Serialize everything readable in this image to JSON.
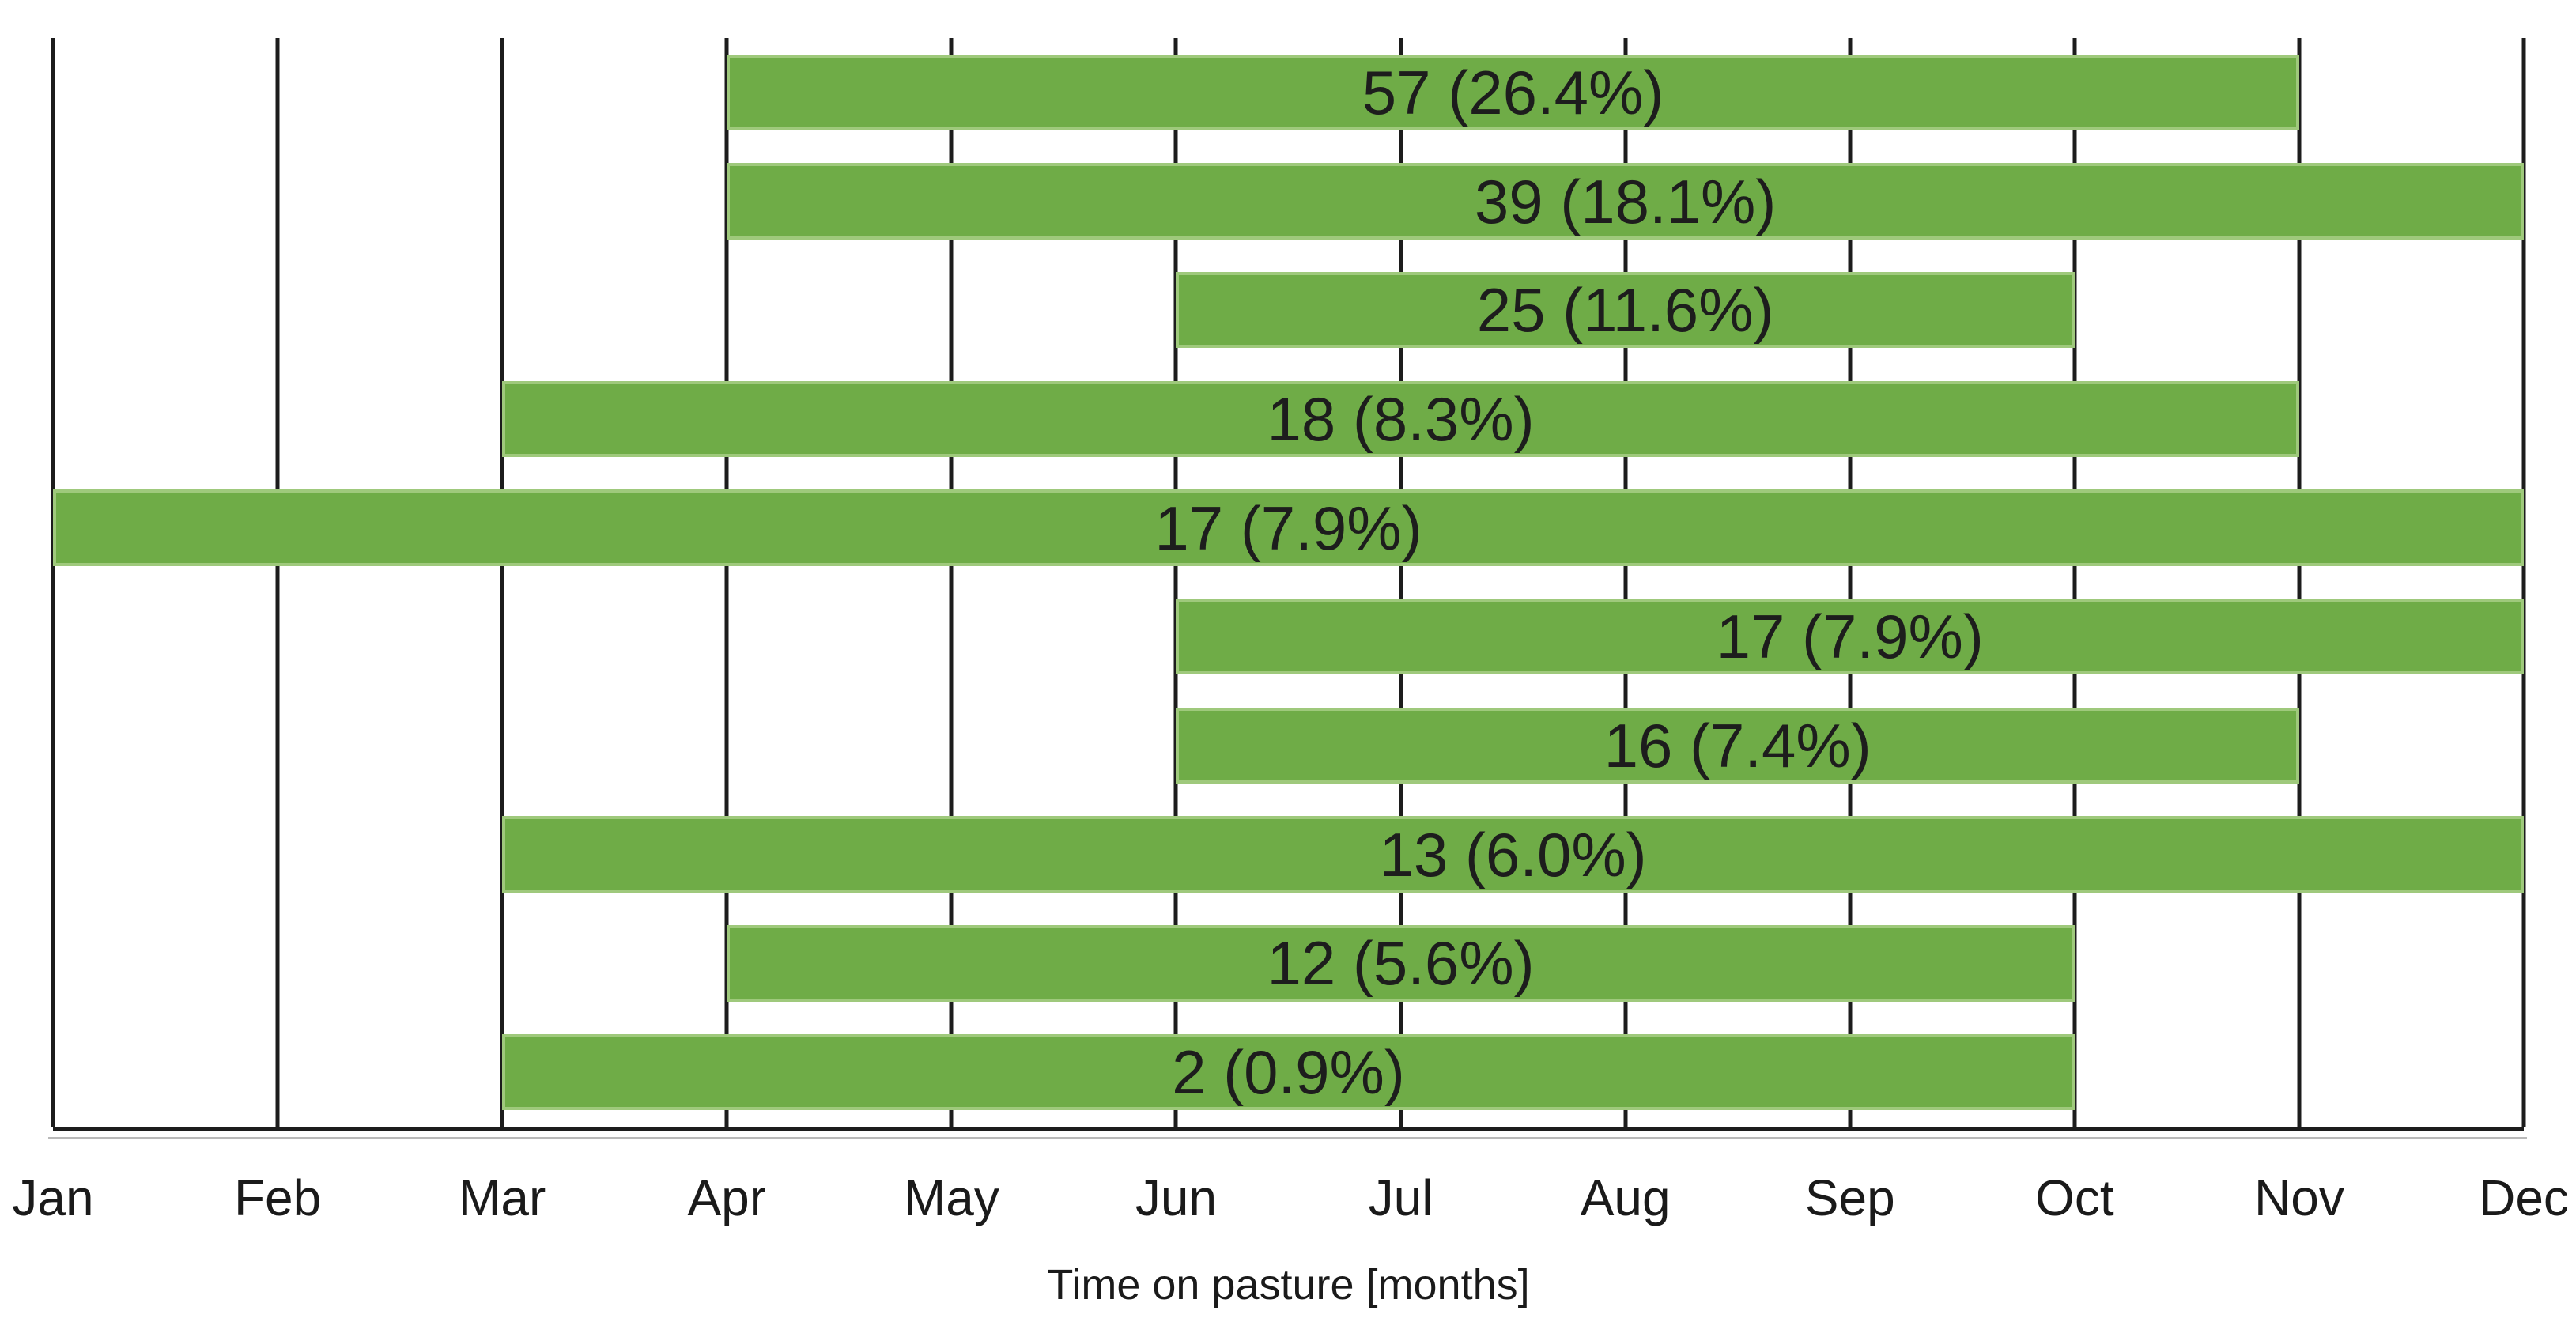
{
  "chart_data": {
    "type": "bar",
    "subtype": "horizontal-range-bars",
    "title": "",
    "xlabel": "Time on pasture [months]",
    "ylabel": "",
    "x_ticks": [
      "Jan",
      "Feb",
      "Mar",
      "Apr",
      "May",
      "Jun",
      "Jul",
      "Aug",
      "Sep",
      "Oct",
      "Nov",
      "Dec"
    ],
    "x_axis_months_span": 11,
    "grid": "vertical black gridlines at each month, bars drawn over gridlines",
    "legend": "none",
    "bar_color": "#6fac47",
    "bar_edge_color": "#9fc97c",
    "colors": {
      "grid_line": "#1c1c1c",
      "axis_line": "#1c1c1c",
      "text": "#1a1a1a",
      "background": "#ffffff"
    },
    "bars": [
      {
        "label": "57 (26.4%)",
        "count": 57,
        "percent": 26.4,
        "start_month": "Apr",
        "end_month": "Nov",
        "start_index": 3,
        "end_index": 10
      },
      {
        "label": "39 (18.1%)",
        "count": 39,
        "percent": 18.1,
        "start_month": "Apr",
        "end_month": "Dec",
        "start_index": 3,
        "end_index": 11
      },
      {
        "label": "25 (11.6%)",
        "count": 25,
        "percent": 11.6,
        "start_month": "Jun",
        "end_month": "Oct",
        "start_index": 5,
        "end_index": 9
      },
      {
        "label": "18 (8.3%)",
        "count": 18,
        "percent": 8.3,
        "start_month": "Mar",
        "end_month": "Nov",
        "start_index": 2,
        "end_index": 10
      },
      {
        "label": "17 (7.9%)",
        "count": 17,
        "percent": 7.9,
        "start_month": "Jan",
        "end_month": "Dec",
        "start_index": 0,
        "end_index": 11
      },
      {
        "label": "17 (7.9%)",
        "count": 17,
        "percent": 7.9,
        "start_month": "Jun",
        "end_month": "Dec",
        "start_index": 5,
        "end_index": 11
      },
      {
        "label": "16 (7.4%)",
        "count": 16,
        "percent": 7.4,
        "start_month": "Jun",
        "end_month": "Nov",
        "start_index": 5,
        "end_index": 10
      },
      {
        "label": "13 (6.0%)",
        "count": 13,
        "percent": 6.0,
        "start_month": "Mar",
        "end_month": "Dec",
        "start_index": 2,
        "end_index": 11
      },
      {
        "label": "12 (5.6%)",
        "count": 12,
        "percent": 5.6,
        "start_month": "Apr",
        "end_month": "Oct",
        "start_index": 3,
        "end_index": 9
      },
      {
        "label": "2 (0.9%)",
        "count": 2,
        "percent": 0.9,
        "start_month": "Mar",
        "end_month": "Oct",
        "start_index": 2,
        "end_index": 9
      }
    ]
  }
}
